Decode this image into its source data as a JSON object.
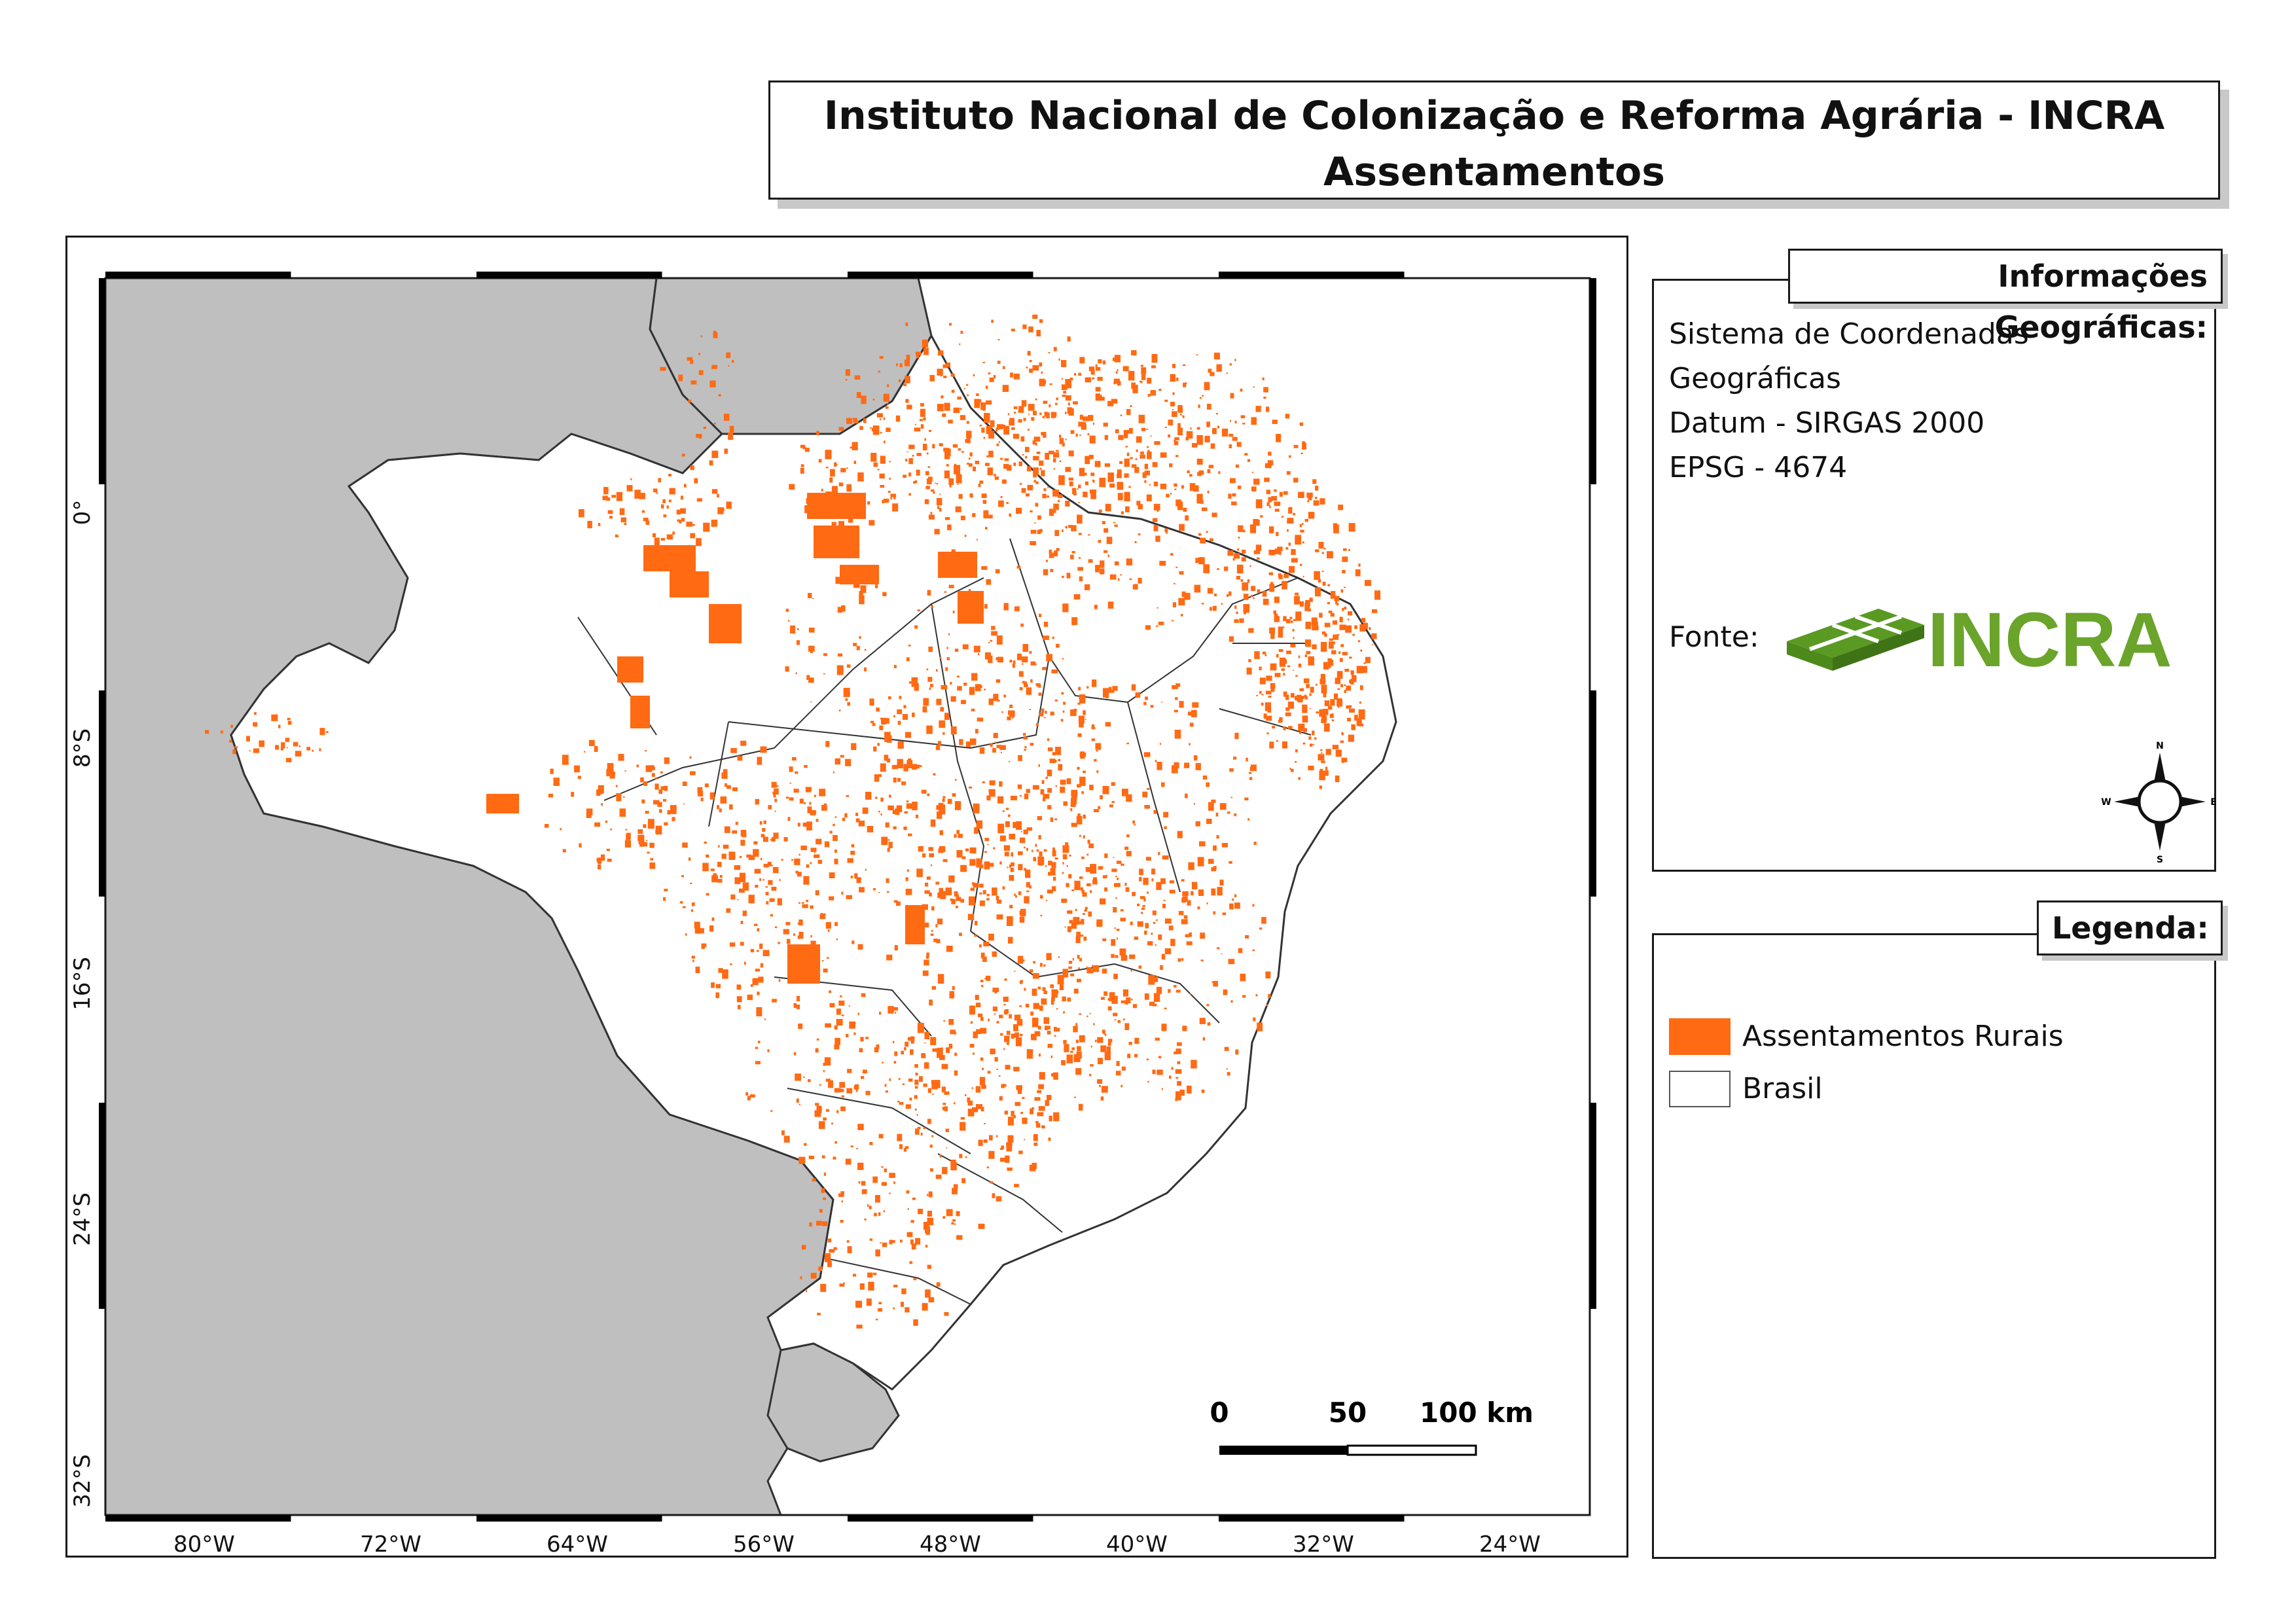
{
  "title": {
    "line1": "Instituto Nacional de Colonização e Reforma Agrária - INCRA",
    "line2": "Assentamentos"
  },
  "map": {
    "lon_labels": [
      "80°W",
      "72°W",
      "64°W",
      "56°W",
      "48°W",
      "40°W",
      "32°W",
      "24°W"
    ],
    "lat_labels": [
      "0°",
      "8°S",
      "16°S",
      "24°S",
      "32°S"
    ],
    "scale_bar": {
      "labels": [
        "0",
        "50",
        "100 km"
      ]
    },
    "colors": {
      "settlements": "#ff6a13",
      "brasil": "#ffffff",
      "neighbors": "#bfbfbf",
      "borders": "#333333"
    }
  },
  "info": {
    "heading": "Informações Geográficas:",
    "lines": [
      "Sistema de Coordenadas",
      "Geográficas",
      "Datum - SIRGAS 2000",
      "EPSG - 4674"
    ],
    "source_label": "Fonte:",
    "logo_text": "INCRA",
    "logo_color": "#6aa42b",
    "compass": {
      "n": "N",
      "s": "S",
      "e": "E",
      "w": "W"
    }
  },
  "legend": {
    "heading": "Legenda:",
    "items": [
      {
        "label": "Assentamentos Rurais",
        "color": "#ff6a13"
      },
      {
        "label": "Brasil",
        "color": "#ffffff"
      }
    ]
  }
}
